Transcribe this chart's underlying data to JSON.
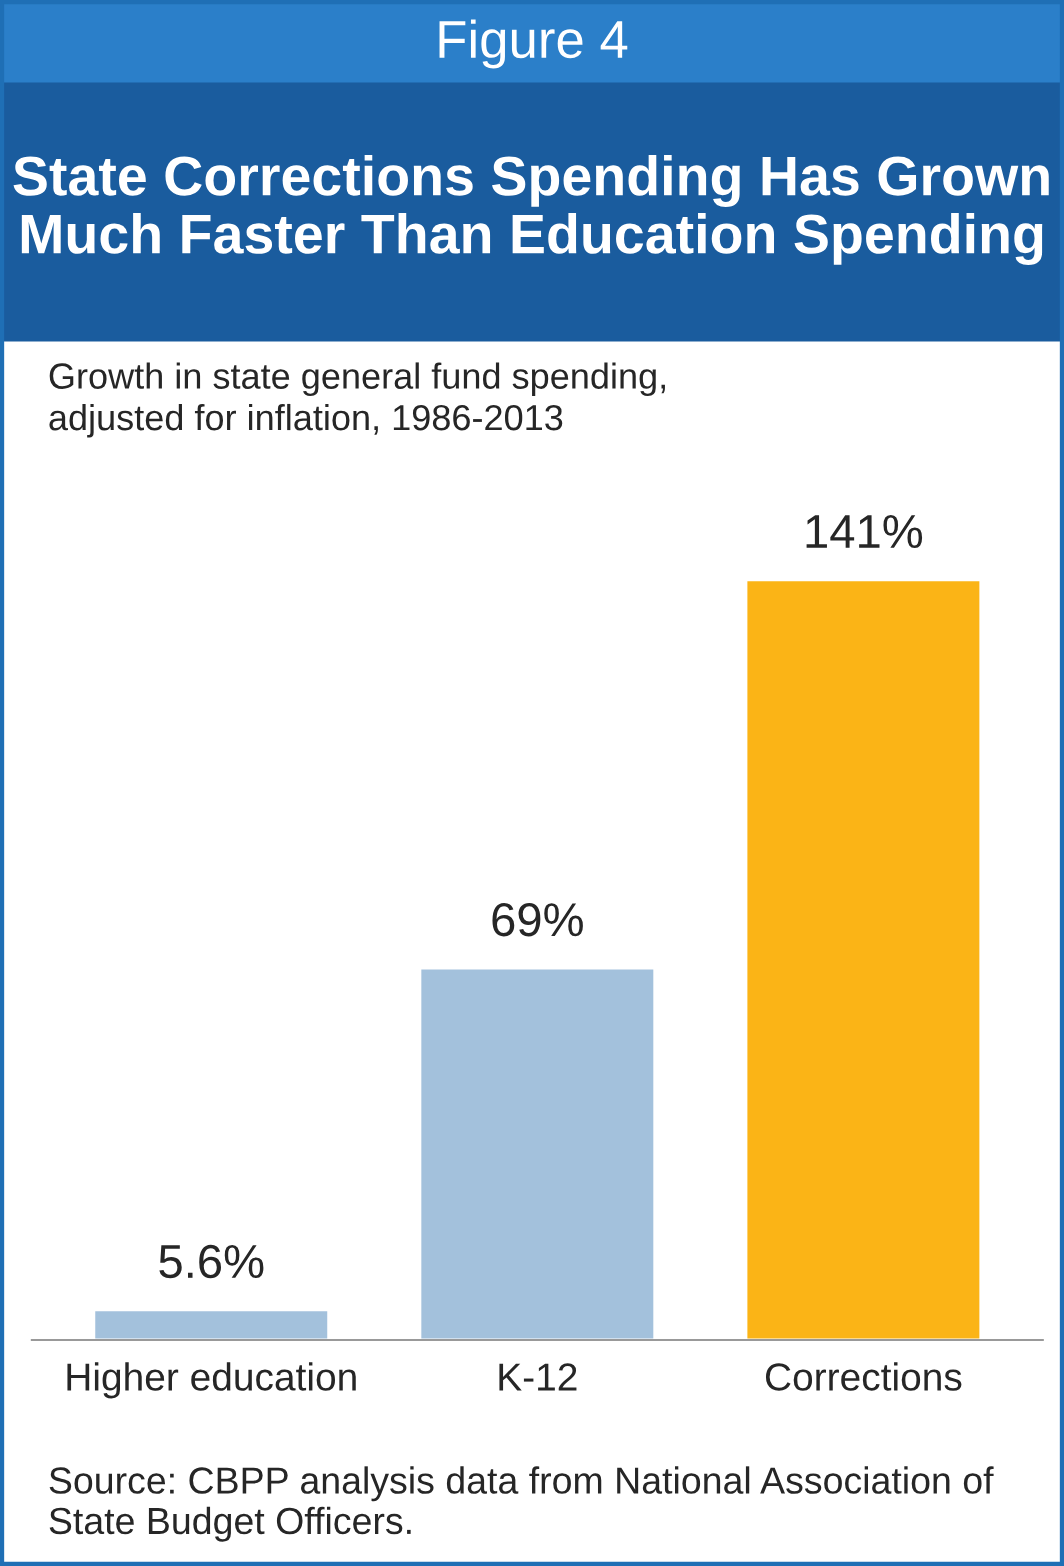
{
  "chart_data": {
    "type": "bar",
    "title": "Figure 4",
    "subtitle": "State Corrections Spending Has Grown Much Faster Than Education Spending",
    "annotations": [
      "Growth in state general fund spending,\nadjusted for inflation, 1986-2013",
      "Source: CBPP analysis data from National Association of State Budget Officers."
    ],
    "categories": [
      "Higher education",
      "K-12",
      "Corrections"
    ],
    "values": [
      5.6,
      69,
      141
    ],
    "colors": [
      "#a3c1dc",
      "#a3c1dc",
      "#fbb416"
    ],
    "value_labels": [
      "5.6%",
      "69%",
      "141%"
    ],
    "tick_labels": "x",
    "grid": false,
    "legend": false
  }
}
